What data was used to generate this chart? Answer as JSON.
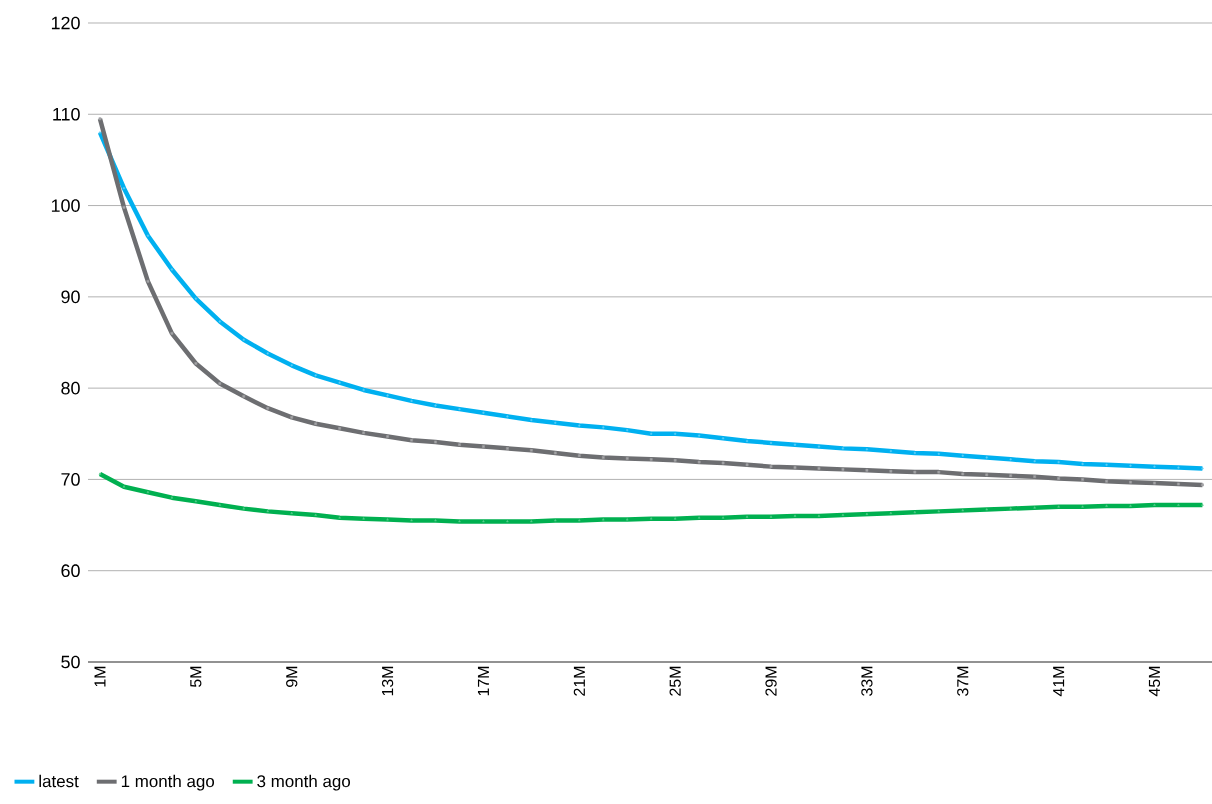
{
  "chart_data": {
    "type": "line",
    "categories": [
      "1M",
      null,
      null,
      null,
      "5M",
      null,
      null,
      null,
      "9M",
      null,
      null,
      null,
      "13M",
      null,
      null,
      null,
      "17M",
      null,
      null,
      null,
      "21M",
      null,
      null,
      null,
      "25M",
      null,
      null,
      null,
      "29M",
      null,
      null,
      null,
      "33M",
      null,
      null,
      null,
      "37M",
      null,
      null,
      null,
      "41M",
      null,
      null,
      null,
      "45M",
      null,
      null
    ],
    "series": [
      {
        "name": "latest",
        "color": "#00b0f0",
        "marker": "circle",
        "values": [
          108.0,
          101.9,
          96.7,
          93.0,
          89.8,
          87.3,
          85.3,
          83.8,
          82.5,
          81.4,
          80.6,
          79.8,
          79.2,
          78.6,
          78.1,
          77.7,
          77.3,
          76.9,
          76.5,
          76.2,
          75.9,
          75.7,
          75.4,
          75.0,
          75.0,
          74.8,
          74.5,
          74.2,
          74.0,
          73.8,
          73.6,
          73.4,
          73.3,
          73.1,
          72.9,
          72.8,
          72.6,
          72.4,
          72.2,
          72.0,
          71.9,
          71.7,
          71.6,
          71.5,
          71.4,
          71.3,
          71.2
        ]
      },
      {
        "name": "1 month ago",
        "color": "#6d6e71",
        "marker": "square",
        "values": [
          109.5,
          99.8,
          91.7,
          86.0,
          82.7,
          80.5,
          79.1,
          77.8,
          76.8,
          76.1,
          75.6,
          75.1,
          74.7,
          74.3,
          74.1,
          73.8,
          73.6,
          73.4,
          73.2,
          72.9,
          72.6,
          72.4,
          72.3,
          72.2,
          72.1,
          71.9,
          71.8,
          71.6,
          71.4,
          71.3,
          71.2,
          71.1,
          71.0,
          70.9,
          70.8,
          70.8,
          70.6,
          70.5,
          70.4,
          70.3,
          70.1,
          70.0,
          69.8,
          69.7,
          69.6,
          69.5,
          69.4
        ]
      },
      {
        "name": "3 month ago",
        "color": "#00b050",
        "marker": "triangle",
        "values": [
          70.6,
          69.2,
          68.6,
          68.0,
          67.6,
          67.2,
          66.8,
          66.5,
          66.3,
          66.1,
          65.8,
          65.7,
          65.6,
          65.5,
          65.5,
          65.4,
          65.4,
          65.4,
          65.4,
          65.5,
          65.5,
          65.6,
          65.6,
          65.7,
          65.7,
          65.8,
          65.8,
          65.9,
          65.9,
          66.0,
          66.0,
          66.1,
          66.2,
          66.3,
          66.4,
          66.5,
          66.6,
          66.7,
          66.8,
          66.9,
          67.0,
          67.0,
          67.1,
          67.1,
          67.2,
          67.2,
          67.2
        ]
      }
    ],
    "ylim": [
      50,
      120
    ],
    "yticks": [
      50,
      60,
      70,
      80,
      90,
      100,
      110,
      120
    ],
    "grid": "y",
    "legend": "bottom left"
  }
}
